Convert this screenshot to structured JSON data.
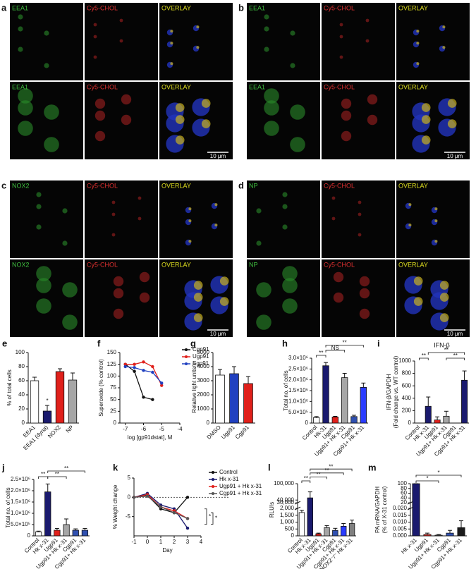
{
  "images": [
    {
      "label": "a",
      "rows": [
        [
          "EEA1",
          "Cy5-CHOL",
          "OVERLAY"
        ],
        [
          "EEA1",
          "Cy5-CHOL",
          "OVERLAY"
        ]
      ],
      "scale_bar": "10 μm"
    },
    {
      "label": "b",
      "rows": [
        [
          "EEA1",
          "Cy5-CHOL",
          "OVERLAY"
        ],
        [
          "EEA1",
          "Cy5-CHOL",
          "OVERLAY"
        ]
      ],
      "scale_bar": "10 μm"
    },
    {
      "label": "c",
      "rows": [
        [
          "NOX2",
          "Cy5-CHOL",
          "OVERLAY"
        ],
        [
          "NOX2",
          "Cy5-CHOL",
          "OVERLAY"
        ]
      ],
      "scale_bar": "10 μm"
    },
    {
      "label": "d",
      "rows": [
        [
          "NP",
          "Cy5-CHOL",
          "OVERLAY"
        ],
        [
          "NP",
          "Cy5-CHOL",
          "OVERLAY"
        ]
      ],
      "scale_bar": "10 μm"
    }
  ],
  "chart_data": [
    {
      "type": "bar",
      "label": "e",
      "ylabel": "% of total cells",
      "categories": [
        "EEA1",
        "EEA1 (dyna)",
        "NOX2",
        "NP"
      ],
      "values": [
        60,
        17,
        73,
        61
      ],
      "errors": [
        5,
        8,
        4,
        10
      ],
      "colors": [
        "#ffffff",
        "#1a1a6e",
        "#e0201b",
        "#a6a6a6"
      ],
      "ylim": [
        0,
        100
      ],
      "yticks": [
        0,
        20,
        40,
        60,
        80,
        100
      ],
      "annotations": [
        "*"
      ]
    },
    {
      "type": "line",
      "label": "f",
      "ylabel": "Superoxide (% control)",
      "xlabel": "log [gp91dstat], M",
      "x": [
        -7,
        -6.5,
        -6,
        -5.5,
        -5
      ],
      "xlim": [
        -7.3,
        -4
      ],
      "xticks": [
        -7,
        -6,
        -5,
        -4
      ],
      "ylim": [
        0,
        150
      ],
      "yticks": [
        0,
        25,
        50,
        75,
        100,
        125,
        150
      ],
      "series": [
        {
          "name": "Cgp91",
          "color": "#111111",
          "values": [
            125,
            110,
            55,
            50,
            null
          ]
        },
        {
          "name": "Ugp91",
          "color": "#e0201b",
          "values": [
            125,
            125,
            130,
            120,
            80
          ]
        },
        {
          "name": "Egp91",
          "color": "#2040c0",
          "values": [
            120,
            118,
            112,
            108,
            85
          ]
        }
      ]
    },
    {
      "type": "bar",
      "label": "g",
      "ylabel": "Relative light units/s",
      "categories": [
        "DMSO",
        "Ugp91",
        "Cgp91"
      ],
      "values": [
        3400,
        3500,
        2800
      ],
      "errors": [
        400,
        500,
        500
      ],
      "colors": [
        "#ffffff",
        "#2040c0",
        "#e0201b"
      ],
      "ylim": [
        0,
        5000
      ],
      "yticks": [
        0,
        1000,
        2000,
        3000,
        4000,
        5000
      ]
    },
    {
      "type": "bar",
      "label": "h",
      "ylabel": "Total no. of cells",
      "categories": [
        "Control",
        "Hk-31",
        "Ugp91",
        "Ugp91+ Hk x-31",
        "Cgp91",
        "Cgp91+ Hk x-31"
      ],
      "values": [
        250000,
        2650000,
        280000,
        2100000,
        300000,
        1650000
      ],
      "errors": [
        50000,
        150000,
        30000,
        200000,
        60000,
        200000
      ],
      "colors": [
        "#ffffff",
        "#1a1a6e",
        "#e0201b",
        "#a6a6a6",
        "#3050b0",
        "#2a3cff"
      ],
      "ylim": [
        0,
        3000000
      ],
      "yticks": [
        0,
        {
          "value": 500000,
          "label": "5.0×10⁵"
        },
        {
          "value": 1000000,
          "label": "1.0×10⁶"
        },
        {
          "value": 1500000,
          "label": "1.5×10⁶"
        },
        {
          "value": 2000000,
          "label": "2.0×10⁶"
        },
        {
          "value": 2500000,
          "label": "2.5×10⁶"
        },
        {
          "value": 3000000,
          "label": "3.0×10⁶"
        }
      ],
      "annotations": [
        "**",
        "NS",
        "**"
      ]
    },
    {
      "type": "bar",
      "label": "i",
      "title": "IFN-β",
      "ylabel": [
        "IFN-β/GAPDH",
        "(Fold change vs. WT control)"
      ],
      "categories": [
        "Control",
        "Hk x-31",
        "Ugp91",
        "Ugp91+ Hk x-31",
        "Cgp91",
        "Cgp91+ Hk x-31"
      ],
      "values": [
        0,
        270,
        50,
        110,
        0,
        690
      ],
      "errors": [
        0,
        150,
        50,
        80,
        0,
        150
      ],
      "colors": [
        "#ffffff",
        "#1a1a6e",
        "#e0201b",
        "#a6a6a6",
        "#3050b0",
        "#1a1a6e"
      ],
      "ylim": [
        0,
        1000
      ],
      "yticks": [
        0,
        200,
        400,
        600,
        800,
        1000
      ],
      "annotations": [
        "**",
        "**",
        "**"
      ]
    },
    {
      "type": "bar",
      "label": "j",
      "ylabel": "Total no. of cells",
      "categories": [
        "Control",
        "Hk x-31",
        "Ugp91",
        "Ugp91+ Hk x-31",
        "Cgp91",
        "Cgp91+ Hk x-31"
      ],
      "values": [
        180000,
        1950000,
        250000,
        500000,
        250000,
        250000
      ],
      "errors": [
        30000,
        350000,
        80000,
        250000,
        60000,
        80000
      ],
      "colors": [
        "#ffffff",
        "#1a1a6e",
        "#e0201b",
        "#a6a6a6",
        "#3050b0",
        "#3050b0"
      ],
      "ylim": [
        0,
        2500000
      ],
      "yticks": [
        0,
        {
          "value": 500000,
          "label": "5.0×10⁵"
        },
        {
          "value": 1000000,
          "label": "1.0×10⁶"
        },
        {
          "value": 1500000,
          "label": "1.5×10⁶"
        },
        {
          "value": 2000000,
          "label": "2.0×10⁶"
        },
        {
          "value": 2500000,
          "label": "2.5×10⁶"
        }
      ],
      "annotations": [
        "**",
        "**",
        "**"
      ]
    },
    {
      "type": "line",
      "label": "k",
      "ylabel": "% Weight change",
      "xlabel": "Day",
      "x": [
        -1,
        0,
        1,
        2,
        3
      ],
      "xlim": [
        -1,
        4
      ],
      "xticks": [
        -1,
        0,
        1,
        2,
        3,
        4
      ],
      "ylim": [
        -10,
        5
      ],
      "yticks": [
        -5,
        0,
        5
      ],
      "series": [
        {
          "name": "Control",
          "color": "#111111",
          "values": [
            0,
            0.5,
            -3,
            -4,
            0
          ]
        },
        {
          "name": "Hk x-31",
          "color": "#1a1a6e",
          "values": [
            0,
            1,
            -2,
            -3,
            -8
          ]
        },
        {
          "name": "Ugp91 + Hk x-31",
          "color": "#e0201b",
          "values": [
            0,
            0.7,
            -2.5,
            -3.5,
            -5.5
          ]
        },
        {
          "name": "Cgp91 + Hk x-31",
          "color": "#555555",
          "values": [
            0,
            0.3,
            -2.5,
            -4,
            -5.5
          ]
        }
      ],
      "annotations": [
        "*",
        "*"
      ]
    },
    {
      "type": "bar",
      "label": "l",
      "ylabel": "RLU/s",
      "categories": [
        "Control",
        "Hk x-31",
        "Ugp91",
        "Ugp91+ Hk x-31",
        "Cgp91",
        "Cgp91+ Hk x-31",
        "NOX2⁻/⁻ Hk x-31"
      ],
      "values": [
        1700,
        48000,
        150,
        600,
        400,
        700,
        900
      ],
      "errors": [
        800,
        22000,
        50,
        150,
        150,
        200,
        250
      ],
      "colors": [
        "#ffffff",
        "#1a1a6e",
        "#e0201b",
        "#a6a6a6",
        "#3050b0",
        "#2a3cff",
        "#808080"
      ],
      "ylim": [
        0,
        100000
      ],
      "ybreak": [
        2000,
        30000
      ],
      "yticks": [
        0,
        500,
        {
          "value": 1000,
          "label": "1,000"
        },
        {
          "value": 1500,
          "label": "1,500"
        },
        {
          "value": 2000,
          "label": "2,000"
        },
        {
          "value": 30000,
          "label": "30,000"
        },
        {
          "value": 40000,
          "label": "40,000"
        },
        {
          "value": 100000,
          "label": "100,000"
        }
      ],
      "annotations": [
        "**",
        "**",
        "**",
        "**"
      ]
    },
    {
      "type": "bar",
      "label": "m",
      "ylabel": [
        "PA mRNA/GAPDH",
        "(% of X-31 control)"
      ],
      "categories": [
        "Hk x-31",
        "Ugp91",
        "Ugp91+ Hk x-31",
        "Cgp91",
        "Cgp91+ Hk x-31"
      ],
      "values": [
        100,
        0.001,
        0.0005,
        0.002,
        0.006
      ],
      "errors": [
        0,
        0.001,
        0.0005,
        0.002,
        0.005
      ],
      "colors": [
        "#1a1a6e",
        "#e0201b",
        "#a6a6a6",
        "#3050b0",
        "#1a1a1a"
      ],
      "ylim": [
        0,
        100
      ],
      "ybreak": [
        0.02,
        20
      ],
      "yticks": [
        {
          "value": 0,
          "label": "0.000"
        },
        0.005,
        {
          "value": 0.01,
          "label": "0.010"
        },
        0.015,
        {
          "value": 0.02,
          "label": "0.020"
        },
        20,
        40,
        60,
        80,
        100
      ],
      "annotations": [
        "*",
        "*"
      ]
    }
  ]
}
